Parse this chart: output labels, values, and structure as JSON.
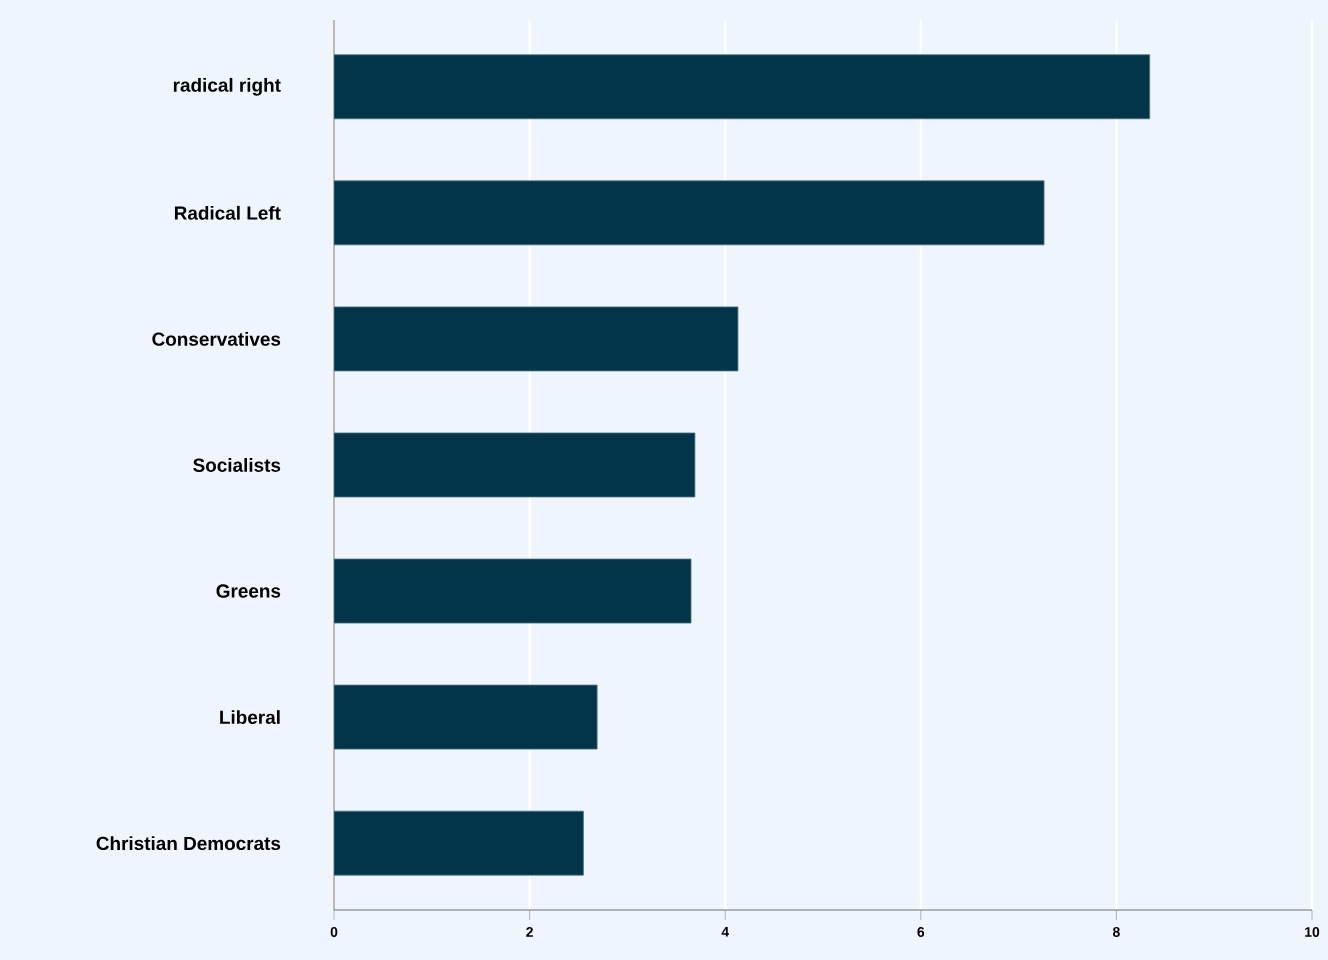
{
  "chart_data": {
    "type": "bar",
    "orientation": "horizontal",
    "categories": [
      "radical right",
      "Radical Left",
      "Conservatives",
      "Socialists",
      "Greens",
      "Liberal",
      "Christian Democrats"
    ],
    "values": [
      8.34,
      7.26,
      4.13,
      3.69,
      3.65,
      2.69,
      2.55
    ],
    "color": "#023549",
    "xlim": [
      0,
      10
    ],
    "xticks": [
      0,
      2,
      4,
      6,
      8,
      10
    ],
    "grid": "x"
  }
}
